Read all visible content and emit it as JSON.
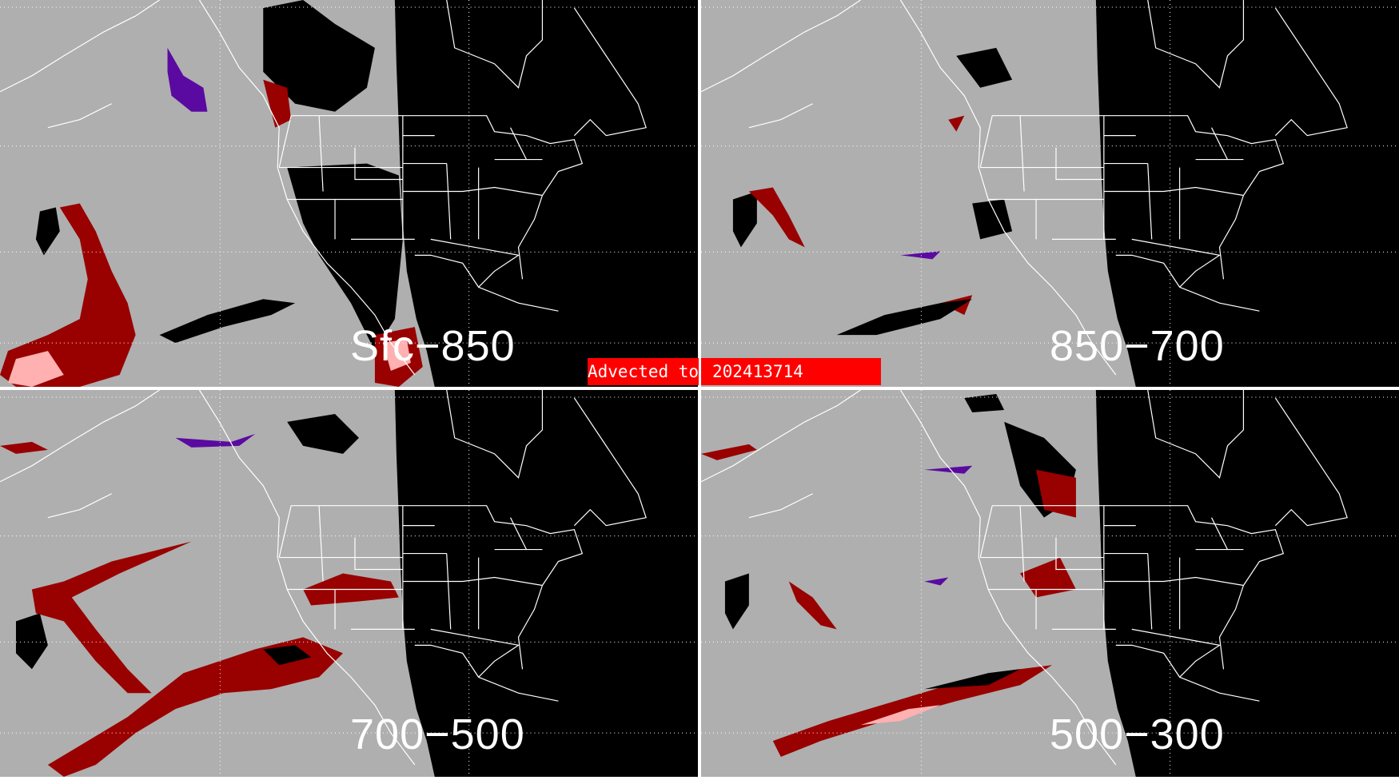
{
  "panels": [
    {
      "label": "Sfc−850"
    },
    {
      "label": "850−700"
    },
    {
      "label": "700−500"
    },
    {
      "label": "500−300"
    }
  ],
  "banner": {
    "prefix": "Advected to",
    "time": "202413714"
  },
  "colors": {
    "background": "#afafaf",
    "night": "#000000",
    "dark_red": "#990000",
    "light_red": "#ffb0b0",
    "purple": "#5a0aa0",
    "outline": "#ffffff",
    "banner": "#ff0000"
  }
}
